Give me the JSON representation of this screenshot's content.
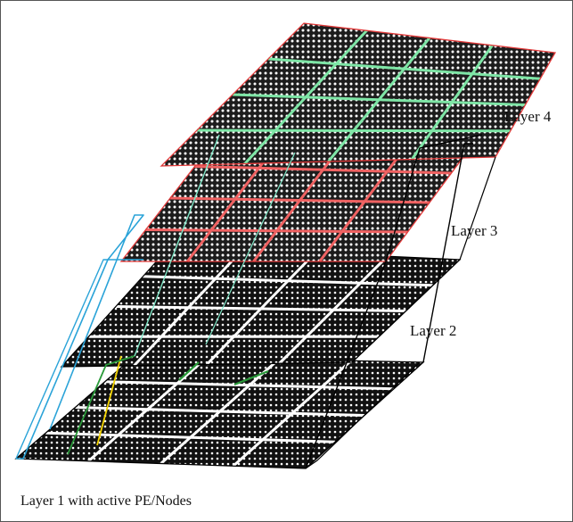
{
  "labels": {
    "layer4": "Layer 4",
    "layer3": "Layer 3",
    "layer2": "Layer 2",
    "caption": "Layer 1 with active PE/Nodes"
  },
  "layers": [
    {
      "name": "Layer 1",
      "tiles_x": 4,
      "tiles_y": 4,
      "border": "#000000",
      "grid": "#ffffff",
      "fill": "#111111"
    },
    {
      "name": "Layer 2",
      "tiles_x": 4,
      "tiles_y": 4,
      "border": "#000000",
      "grid": "#ffffff",
      "fill": "#111111"
    },
    {
      "name": "Layer 3",
      "tiles_x": 4,
      "tiles_y": 4,
      "border": "#e23a3a",
      "grid": "#f06262",
      "fill": "#1a1a1a"
    },
    {
      "name": "Layer 4",
      "tiles_x": 4,
      "tiles_y": 4,
      "border": "#e23a3a",
      "grid": "#7ee6a6",
      "fill": "#1a1a1a"
    }
  ],
  "colors": {
    "connector_black": "#000000",
    "connector_blue": "#2aa3d8",
    "connector_yellow": "#f2d200",
    "connector_green": "#2a9a3a",
    "connector_teal": "#7ee6c6"
  }
}
